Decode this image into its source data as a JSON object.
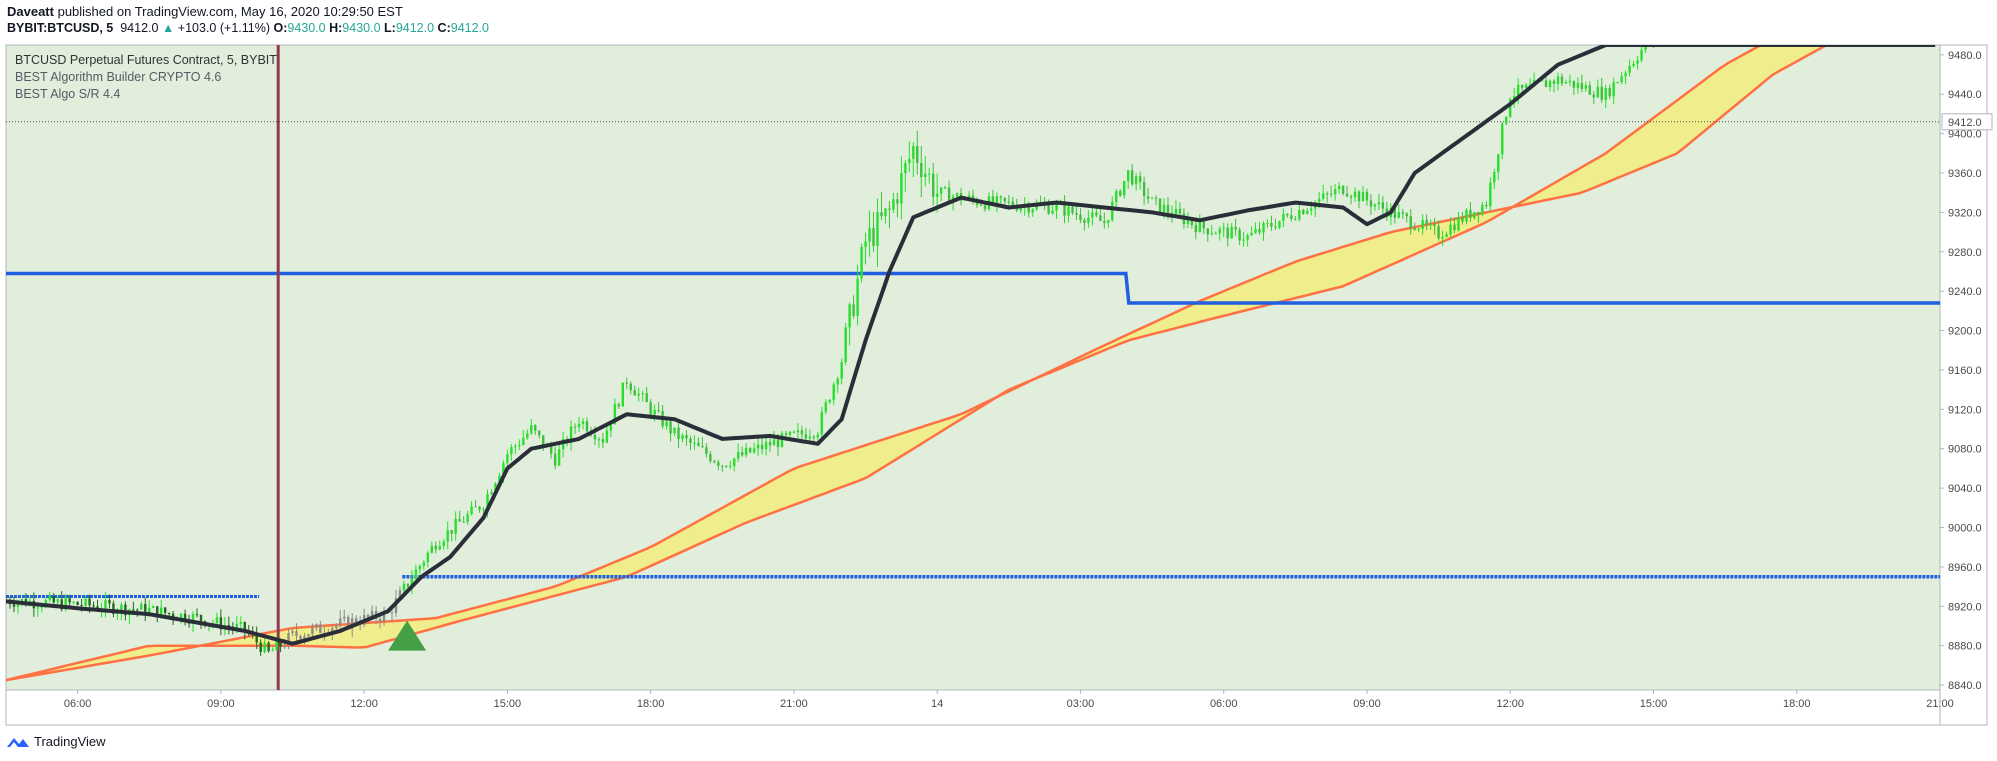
{
  "header": {
    "author": "Daveatt",
    "published_text": "published on TradingView.com, May 16, 2020 10:29:50 EST",
    "symbol": "BYBIT:BTCUSD, 5",
    "last": "9412.0",
    "change": "+103.0 (+1.11%)",
    "o_label": "O:",
    "o_value": "9430.0",
    "h_label": "H:",
    "h_value": "9430.0",
    "l_label": "L:",
    "l_value": "9412.0",
    "c_label": "C:",
    "c_value": "9412.0"
  },
  "legend": {
    "line1": "BTCUSD Perpetual Futures Contract, 5, BYBIT",
    "line2": "BEST Algorithm Builder CRYPTO 4.6",
    "line3": "BEST Algo S/R 4.4"
  },
  "footer": {
    "brand": "TradingView"
  },
  "chart_data": {
    "type": "line",
    "y_ticks": [
      "9480.0",
      "9440.0",
      "9400.0",
      "9360.0",
      "9320.0",
      "9280.0",
      "9240.0",
      "9200.0",
      "9160.0",
      "9120.0",
      "9080.0",
      "9040.0",
      "9000.0",
      "8960.0",
      "8920.0",
      "8880.0",
      "8840.0"
    ],
    "x_ticks": [
      "06:00",
      "09:00",
      "12:00",
      "15:00",
      "18:00",
      "21:00",
      "14",
      "03:00",
      "06:00",
      "09:00",
      "12:00",
      "15:00",
      "18:00",
      "21:00"
    ],
    "ylim": [
      8835,
      9490
    ],
    "x_range_hours": [
      4.5,
      45.0
    ],
    "grid": true,
    "colors": {
      "background": "#e1eedb",
      "bull": "#26e02c",
      "bear": "#1e6b1e",
      "neutral": "#8c8c8c",
      "ma": "#2a2e39",
      "sr": "#1f5fe0",
      "band": "#f2ec7f",
      "band_edge": "#ff7043",
      "signal": "#43a047"
    },
    "price_path": [
      [
        4.5,
        8926
      ],
      [
        6.0,
        8922
      ],
      [
        7.5,
        8916
      ],
      [
        8.5,
        8908
      ],
      [
        9.5,
        8896
      ],
      [
        10.0,
        8872
      ],
      [
        10.5,
        8890
      ],
      [
        11.5,
        8902
      ],
      [
        12.5,
        8912
      ],
      [
        13.0,
        8950
      ],
      [
        13.5,
        8985
      ],
      [
        14.5,
        9025
      ],
      [
        15.0,
        9075
      ],
      [
        15.5,
        9100
      ],
      [
        16.0,
        9070
      ],
      [
        16.5,
        9110
      ],
      [
        17.0,
        9090
      ],
      [
        17.5,
        9150
      ],
      [
        18.0,
        9120
      ],
      [
        18.5,
        9095
      ],
      [
        19.0,
        9080
      ],
      [
        19.5,
        9065
      ],
      [
        20.5,
        9085
      ],
      [
        21.5,
        9100
      ],
      [
        22.0,
        9170
      ],
      [
        22.5,
        9290
      ],
      [
        23.0,
        9320
      ],
      [
        23.5,
        9385
      ],
      [
        24.0,
        9340
      ],
      [
        25.0,
        9330
      ],
      [
        26.5,
        9325
      ],
      [
        27.5,
        9310
      ],
      [
        28.0,
        9360
      ],
      [
        28.5,
        9330
      ],
      [
        29.5,
        9305
      ],
      [
        30.5,
        9295
      ],
      [
        31.5,
        9320
      ],
      [
        32.5,
        9345
      ],
      [
        33.5,
        9320
      ],
      [
        34.5,
        9298
      ],
      [
        35.5,
        9330
      ],
      [
        36.0,
        9440
      ],
      [
        37.0,
        9455
      ],
      [
        38.0,
        9440
      ],
      [
        38.5,
        9470
      ],
      [
        39.0,
        9500
      ]
    ],
    "ma_path": [
      [
        4.5,
        8925
      ],
      [
        6.0,
        8918
      ],
      [
        7.5,
        8912
      ],
      [
        9.5,
        8895
      ],
      [
        10.5,
        8882
      ],
      [
        11.5,
        8895
      ],
      [
        12.5,
        8915
      ],
      [
        13.2,
        8950
      ],
      [
        13.8,
        8970
      ],
      [
        14.5,
        9010
      ],
      [
        15.0,
        9060
      ],
      [
        15.5,
        9080
      ],
      [
        16.5,
        9090
      ],
      [
        17.5,
        9115
      ],
      [
        18.5,
        9110
      ],
      [
        19.5,
        9090
      ],
      [
        20.5,
        9093
      ],
      [
        21.5,
        9085
      ],
      [
        22.0,
        9110
      ],
      [
        22.5,
        9190
      ],
      [
        23.0,
        9260
      ],
      [
        23.5,
        9315
      ],
      [
        24.5,
        9335
      ],
      [
        25.5,
        9325
      ],
      [
        26.5,
        9330
      ],
      [
        27.5,
        9325
      ],
      [
        28.5,
        9320
      ],
      [
        29.5,
        9312
      ],
      [
        30.5,
        9322
      ],
      [
        31.5,
        9330
      ],
      [
        32.5,
        9325
      ],
      [
        33.0,
        9308
      ],
      [
        33.5,
        9320
      ],
      [
        34.0,
        9360
      ],
      [
        35.0,
        9395
      ],
      [
        36.0,
        9430
      ],
      [
        37.0,
        9470
      ],
      [
        38.0,
        9490
      ]
    ],
    "band_a": [
      [
        4.5,
        8845
      ],
      [
        7.5,
        8870
      ],
      [
        10.5,
        8898
      ],
      [
        13.5,
        8908
      ],
      [
        16.0,
        8940
      ],
      [
        18.0,
        8980
      ],
      [
        21.0,
        9060
      ],
      [
        24.5,
        9115
      ],
      [
        27.5,
        9185
      ],
      [
        29.5,
        9230
      ],
      [
        31.5,
        9270
      ],
      [
        33.5,
        9300
      ],
      [
        35.5,
        9320
      ],
      [
        37.5,
        9340
      ],
      [
        39.5,
        9380
      ],
      [
        41.5,
        9460
      ],
      [
        43.0,
        9500
      ]
    ],
    "band_b": [
      [
        4.5,
        8845
      ],
      [
        7.5,
        8880
      ],
      [
        10.5,
        8880
      ],
      [
        12.0,
        8878
      ],
      [
        14.0,
        8905
      ],
      [
        17.5,
        8950
      ],
      [
        20.0,
        9005
      ],
      [
        22.5,
        9050
      ],
      [
        25.5,
        9140
      ],
      [
        28.0,
        9190
      ],
      [
        30.0,
        9215
      ],
      [
        32.5,
        9245
      ],
      [
        35.5,
        9310
      ],
      [
        38.0,
        9380
      ],
      [
        40.5,
        9470
      ],
      [
        42.0,
        9510
      ]
    ],
    "sr_upper": {
      "value": 9258,
      "step_to": 9228,
      "step_at_hours": 27.95
    },
    "sr_lower": {
      "start_value": 8930,
      "start_end_hours": 9.8,
      "value": 8950,
      "from_hours": 12.8
    },
    "price_marker": 9412.0,
    "signal_marker": {
      "type": "buy-triangle",
      "x_hours": 12.9,
      "y": 8875
    }
  }
}
